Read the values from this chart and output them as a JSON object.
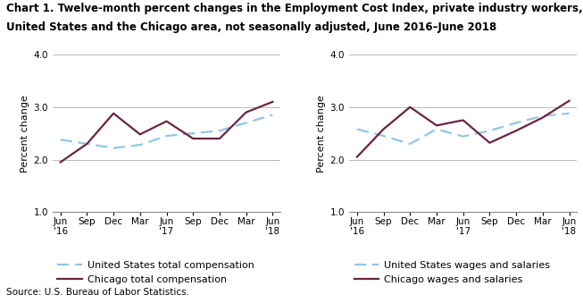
{
  "title_line1": "Chart 1. Twelve-month percent changes in the Employment Cost Index, private industry workers,",
  "title_line2": "United States and the Chicago area, not seasonally adjusted, June 2016–June 2018",
  "source": "Source: U.S. Bureau of Labor Statistics.",
  "ylabel": "Percent change",
  "ylim": [
    1.0,
    4.0
  ],
  "yticks": [
    1.0,
    2.0,
    3.0,
    4.0
  ],
  "chart1": {
    "us_total": [
      2.38,
      2.3,
      2.22,
      2.28,
      2.45,
      2.5,
      2.55,
      2.7,
      2.85
    ],
    "chicago_total": [
      1.95,
      2.3,
      2.88,
      2.48,
      2.73,
      2.4,
      2.4,
      2.9,
      3.1
    ],
    "legend1": "United States total compensation",
    "legend2": "Chicago total compensation"
  },
  "chart2": {
    "us_wages": [
      2.58,
      2.45,
      2.3,
      2.58,
      2.44,
      2.55,
      2.7,
      2.83,
      2.88
    ],
    "chicago_wages": [
      2.05,
      2.58,
      3.0,
      2.65,
      2.75,
      2.32,
      2.55,
      2.8,
      3.12
    ],
    "legend1": "United States wages and salaries",
    "legend2": "Chicago wages and salaries"
  },
  "us_color": "#92C5E8",
  "chicago_color": "#6B2442",
  "us_linewidth": 1.6,
  "chicago_linewidth": 1.6,
  "grid_color": "#BBBBBB",
  "title_fontsize": 8.5,
  "label_fontsize": 8,
  "tick_fontsize": 7.5,
  "legend_fontsize": 8,
  "source_fontsize": 7.5
}
